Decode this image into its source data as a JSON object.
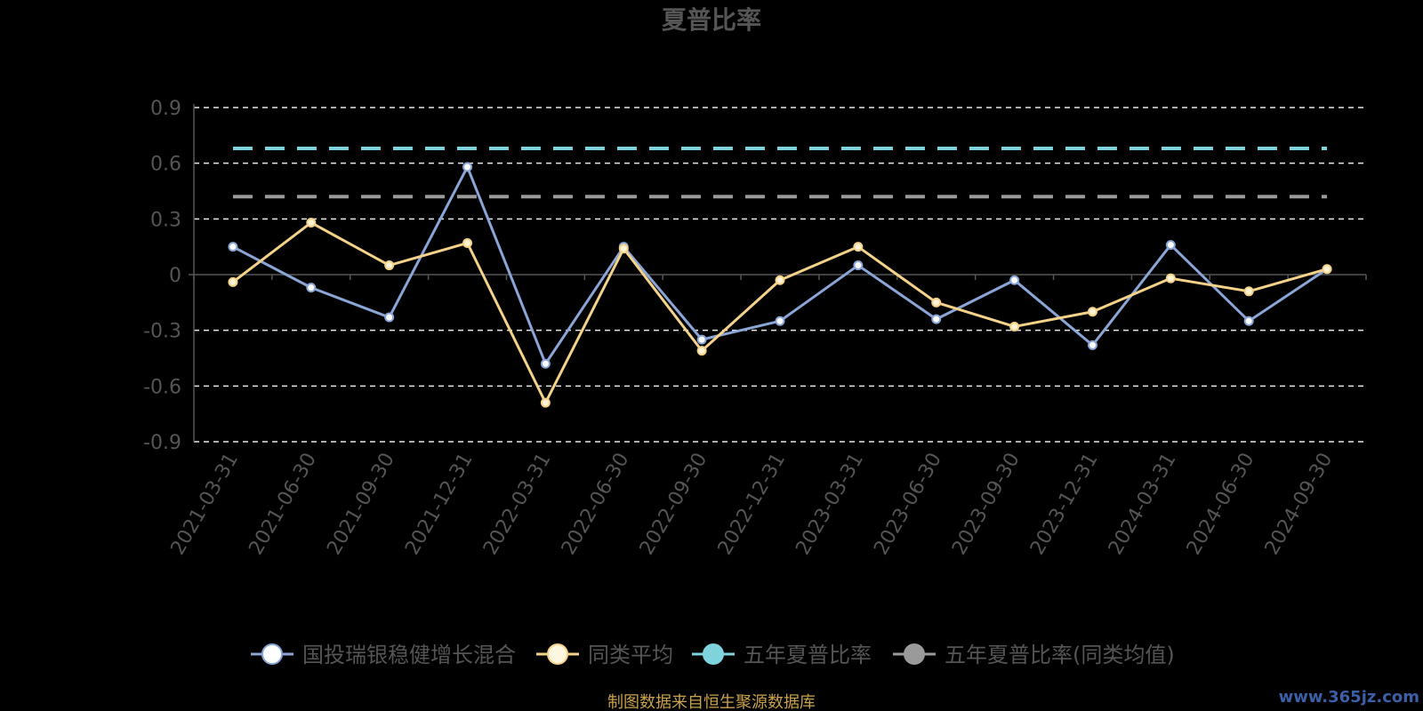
{
  "chart_data": {
    "type": "line",
    "title": "夏普比率",
    "categories": [
      "2021-03-31",
      "2021-06-30",
      "2021-09-30",
      "2021-12-31",
      "2022-03-31",
      "2022-06-30",
      "2022-09-30",
      "2022-12-31",
      "2023-03-31",
      "2023-06-30",
      "2023-09-30",
      "2023-12-31",
      "2024-03-31",
      "2024-06-30",
      "2024-09-30"
    ],
    "ylim": [
      -0.9,
      0.9
    ],
    "yticks": [
      0.9,
      0.6,
      0.3,
      0,
      -0.3,
      -0.6,
      -0.9
    ],
    "ytick_labels": [
      "0.9",
      "0.6",
      "0.3",
      "0",
      "-0.3",
      "-0.6",
      "-0.9"
    ],
    "grid": true,
    "legend_position": "bottom",
    "series": [
      {
        "name": "国投瑞银稳健增长混合",
        "color": "#8aa5d6",
        "marker_fill": "#ffffff",
        "values": [
          0.15,
          -0.07,
          -0.23,
          0.58,
          -0.48,
          0.15,
          -0.35,
          -0.25,
          0.05,
          -0.24,
          -0.03,
          -0.38,
          0.16,
          -0.25,
          0.03
        ]
      },
      {
        "name": "同类平均",
        "color": "#f5d28a",
        "marker_fill": "#fff3d6",
        "values": [
          -0.04,
          0.28,
          0.05,
          0.17,
          -0.69,
          0.14,
          -0.41,
          -0.03,
          0.15,
          -0.15,
          -0.28,
          -0.2,
          -0.02,
          -0.09,
          0.03
        ]
      },
      {
        "name": "五年夏普比率",
        "color": "#7fd3dc",
        "dashed": true,
        "value": 0.68
      },
      {
        "name": "五年夏普比率(同类均值)",
        "color": "#9a9a9a",
        "dashed": true,
        "value": 0.42
      }
    ]
  },
  "footer": {
    "source": "制图数据来自恒生聚源数据库",
    "watermark": "www.365jz.com"
  }
}
